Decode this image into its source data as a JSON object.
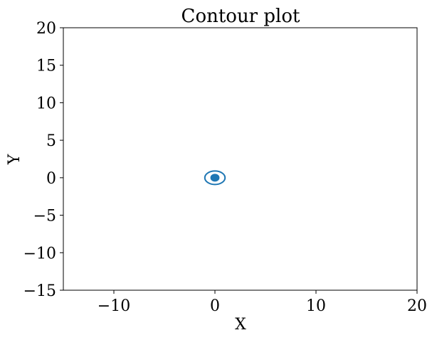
{
  "chart_data": {
    "type": "contour",
    "title": "Contour plot",
    "xlabel": "X",
    "ylabel": "Y",
    "xlim": [
      -15,
      20
    ],
    "ylim": [
      -15,
      20
    ],
    "x_ticks": [
      -10,
      0,
      10,
      20
    ],
    "y_ticks": [
      -15,
      -10,
      -5,
      0,
      5,
      10,
      15,
      20
    ],
    "x_tick_labels": [
      "−10",
      "0",
      "10",
      "20"
    ],
    "y_tick_labels": [
      "−15",
      "−10",
      "−5",
      "0",
      "5",
      "10",
      "15",
      "20"
    ],
    "grid": false,
    "line_color": "#1f77b4",
    "contours": [
      {
        "center": [
          0,
          0
        ],
        "rx": 1.0,
        "ry": 0.9,
        "filled": false
      },
      {
        "center": [
          0,
          0
        ],
        "rx": 0.4,
        "ry": 0.45,
        "filled": true
      }
    ]
  }
}
